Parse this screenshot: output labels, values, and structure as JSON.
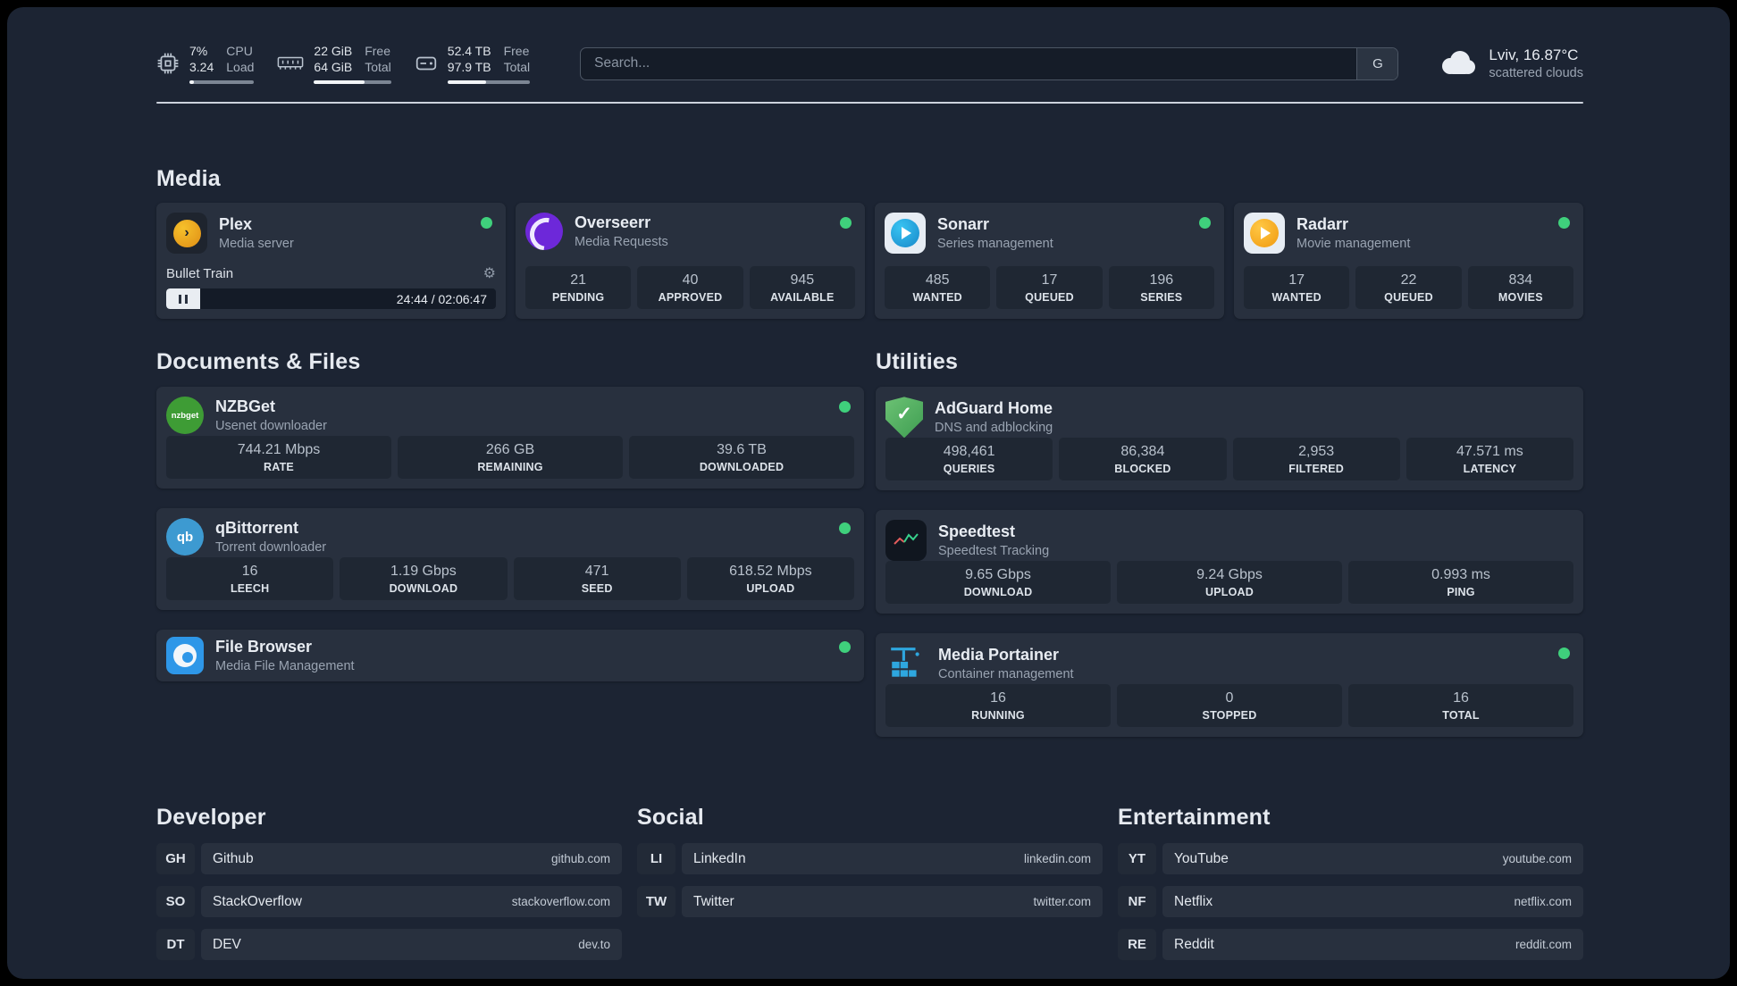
{
  "colors": {
    "accent_green": "#3fd07c",
    "panel_bg": "#1c2433",
    "card_bg": "#28303e"
  },
  "icons": {
    "gear": "⚙",
    "check": "✓",
    "plex_chevron": "›",
    "qbittorrent_monogram": "qb",
    "nzbget_wordmark": "nzbget"
  },
  "topbar": {
    "cpu": {
      "value_top": "7%",
      "value_bottom": "3.24",
      "label_top": "CPU",
      "label_bottom": "Load",
      "progress": 7
    },
    "memory": {
      "value_top": "22 GiB",
      "value_bottom": "64 GiB",
      "label_top": "Free",
      "label_bottom": "Total",
      "progress": 66
    },
    "disk": {
      "value_top": "52.4 TB",
      "value_bottom": "97.9 TB",
      "label_top": "Free",
      "label_bottom": "Total",
      "progress": 47
    },
    "search": {
      "placeholder": "Search...",
      "button_label": "G"
    },
    "weather": {
      "location": "Lviv, 16.87°C",
      "condition": "scattered clouds"
    }
  },
  "media": {
    "title": "Media",
    "plex": {
      "name": "Plex",
      "desc": "Media server",
      "track": "Bullet Train",
      "time": "24:44 / 02:06:47"
    },
    "overseerr": {
      "name": "Overseerr",
      "desc": "Media Requests",
      "stats": [
        {
          "value": "21",
          "label": "PENDING"
        },
        {
          "value": "40",
          "label": "APPROVED"
        },
        {
          "value": "945",
          "label": "AVAILABLE"
        }
      ]
    },
    "sonarr": {
      "name": "Sonarr",
      "desc": "Series management",
      "stats": [
        {
          "value": "485",
          "label": "WANTED"
        },
        {
          "value": "17",
          "label": "QUEUED"
        },
        {
          "value": "196",
          "label": "SERIES"
        }
      ]
    },
    "radarr": {
      "name": "Radarr",
      "desc": "Movie management",
      "stats": [
        {
          "value": "17",
          "label": "WANTED"
        },
        {
          "value": "22",
          "label": "QUEUED"
        },
        {
          "value": "834",
          "label": "MOVIES"
        }
      ]
    }
  },
  "documents": {
    "title": "Documents & Files",
    "nzbget": {
      "name": "NZBGet",
      "desc": "Usenet downloader",
      "stats": [
        {
          "value": "744.21 Mbps",
          "label": "RATE"
        },
        {
          "value": "266 GB",
          "label": "REMAINING"
        },
        {
          "value": "39.6 TB",
          "label": "DOWNLOADED"
        }
      ]
    },
    "qbittorrent": {
      "name": "qBittorrent",
      "desc": "Torrent downloader",
      "stats": [
        {
          "value": "16",
          "label": "LEECH"
        },
        {
          "value": "1.19 Gbps",
          "label": "DOWNLOAD"
        },
        {
          "value": "471",
          "label": "SEED"
        },
        {
          "value": "618.52 Mbps",
          "label": "UPLOAD"
        }
      ]
    },
    "filebrowser": {
      "name": "File Browser",
      "desc": "Media File Management"
    }
  },
  "utilities": {
    "title": "Utilities",
    "adguard": {
      "name": "AdGuard Home",
      "desc": "DNS and adblocking",
      "stats": [
        {
          "value": "498,461",
          "label": "QUERIES"
        },
        {
          "value": "86,384",
          "label": "BLOCKED"
        },
        {
          "value": "2,953",
          "label": "FILTERED"
        },
        {
          "value": "47.571 ms",
          "label": "LATENCY"
        }
      ]
    },
    "speedtest": {
      "name": "Speedtest",
      "desc": "Speedtest Tracking",
      "stats": [
        {
          "value": "9.65 Gbps",
          "label": "DOWNLOAD"
        },
        {
          "value": "9.24 Gbps",
          "label": "UPLOAD"
        },
        {
          "value": "0.993 ms",
          "label": "PING"
        }
      ]
    },
    "portainer": {
      "name": "Media Portainer",
      "desc": "Container management",
      "stats": [
        {
          "value": "16",
          "label": "RUNNING"
        },
        {
          "value": "0",
          "label": "STOPPED"
        },
        {
          "value": "16",
          "label": "TOTAL"
        }
      ]
    }
  },
  "bookmarks": {
    "groups": [
      {
        "title": "Developer",
        "links": [
          {
            "abbr": "GH",
            "name": "Github",
            "url": "github.com"
          },
          {
            "abbr": "SO",
            "name": "StackOverflow",
            "url": "stackoverflow.com"
          },
          {
            "abbr": "DT",
            "name": "DEV",
            "url": "dev.to"
          }
        ]
      },
      {
        "title": "Social",
        "links": [
          {
            "abbr": "LI",
            "name": "LinkedIn",
            "url": "linkedin.com"
          },
          {
            "abbr": "TW",
            "name": "Twitter",
            "url": "twitter.com"
          }
        ]
      },
      {
        "title": "Entertainment",
        "links": [
          {
            "abbr": "YT",
            "name": "YouTube",
            "url": "youtube.com"
          },
          {
            "abbr": "NF",
            "name": "Netflix",
            "url": "netflix.com"
          },
          {
            "abbr": "RE",
            "name": "Reddit",
            "url": "reddit.com"
          }
        ]
      }
    ]
  }
}
